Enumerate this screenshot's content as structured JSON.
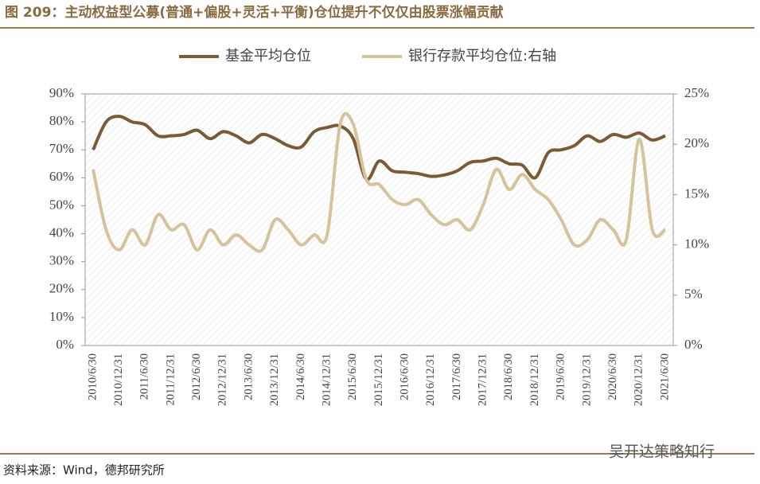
{
  "chart_data": {
    "type": "line",
    "title": "图 209：主动权益型公募(普通+偏股+灵活+平衡)仓位提升不仅仅由股票涨幅贡献",
    "source": "资料来源：Wind，德邦研究所",
    "watermark": "吴开达策略知行",
    "categories": [
      "2010/6/30",
      null,
      "2010/12/31",
      null,
      "2011/6/30",
      null,
      "2011/12/31",
      null,
      "2012/6/30",
      null,
      "2012/12/31",
      null,
      "2013/6/30",
      null,
      "2013/12/31",
      null,
      "2014/6/30",
      null,
      "2014/12/31",
      null,
      "2015/6/30",
      null,
      "2015/12/31",
      null,
      "2016/6/30",
      null,
      "2016/12/31",
      null,
      "2017/6/30",
      null,
      "2017/12/31",
      null,
      "2018/6/30",
      null,
      "2018/12/31",
      null,
      "2019/6/30",
      null,
      "2019/12/31",
      null,
      "2020/6/30",
      null,
      "2020/12/31",
      null,
      "2021/6/30"
    ],
    "series": [
      {
        "name": "基金平均仓位",
        "color": "#7b5a34",
        "values": [
          70,
          80,
          82,
          80,
          79,
          75,
          75,
          75.5,
          77,
          74,
          76.5,
          75,
          72.5,
          75.5,
          74,
          71.5,
          71,
          76.5,
          78,
          78.5,
          74,
          59.5,
          66,
          62.5,
          62,
          61.5,
          60.5,
          61,
          62.5,
          65.5,
          66,
          67,
          65,
          64.5,
          60,
          69,
          70,
          71.5,
          75,
          73,
          75.5,
          74.5,
          76,
          73.5,
          75
        ]
      },
      {
        "name": "银行存款平均仓位:右轴",
        "color": "#d6c39b",
        "axis": "y2",
        "values": [
          17.5,
          11.5,
          9.5,
          11.5,
          10,
          13,
          11.5,
          12,
          9.5,
          11.5,
          10,
          11,
          10,
          9.5,
          12.5,
          11.5,
          10,
          11,
          11,
          22,
          22,
          16.5,
          16,
          14.5,
          14,
          14.5,
          13,
          12,
          12.5,
          11.5,
          14,
          17.5,
          15.5,
          17,
          15.5,
          14.5,
          12.5,
          10,
          10.5,
          12.5,
          11.5,
          10.5,
          20.5,
          11.5,
          11.5
        ]
      }
    ],
    "ylim": [
      0,
      90
    ],
    "yticks": [
      {
        "value": 0,
        "label": "0%"
      },
      {
        "value": 10,
        "label": "10%"
      },
      {
        "value": 20,
        "label": "20%"
      },
      {
        "value": 30,
        "label": "30%"
      },
      {
        "value": 40,
        "label": "40%"
      },
      {
        "value": 50,
        "label": "50%"
      },
      {
        "value": 60,
        "label": "60%"
      },
      {
        "value": 70,
        "label": "70%"
      },
      {
        "value": 80,
        "label": "80%"
      },
      {
        "value": 90,
        "label": "90%"
      }
    ],
    "y2lim": [
      0,
      25
    ],
    "y2ticks": [
      {
        "value": 0,
        "label": "0%"
      },
      {
        "value": 5,
        "label": "5%"
      },
      {
        "value": 10,
        "label": "10%"
      },
      {
        "value": 15,
        "label": "15%"
      },
      {
        "value": 20,
        "label": "20%"
      },
      {
        "value": 25,
        "label": "25%"
      }
    ],
    "legend": "top"
  }
}
